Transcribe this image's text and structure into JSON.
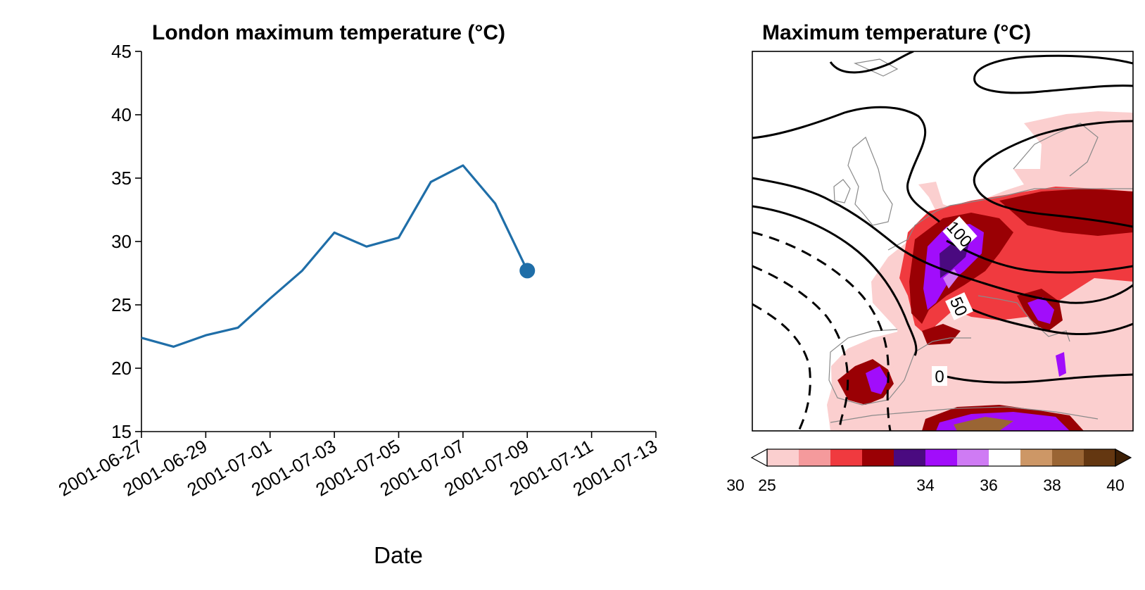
{
  "chart_data": [
    {
      "type": "line",
      "title": "London maximum temperature (°C)",
      "xlabel": "Date",
      "ylabel": "",
      "x": [
        "2001-06-27",
        "2001-06-28",
        "2001-06-29",
        "2001-06-30",
        "2001-07-01",
        "2001-07-02",
        "2001-07-03",
        "2001-07-04",
        "2001-07-05",
        "2001-07-06",
        "2001-07-07",
        "2001-07-08",
        "2001-07-09"
      ],
      "values": [
        22.4,
        21.7,
        22.6,
        23.2,
        25.5,
        27.7,
        30.7,
        29.6,
        30.3,
        34.7,
        36.0,
        33.0,
        27.7
      ],
      "highlight": {
        "x": "2001-07-09",
        "value": 27.7
      },
      "xticks": [
        "2001-06-27",
        "2001-06-29",
        "2001-07-01",
        "2001-07-03",
        "2001-07-05",
        "2001-07-07",
        "2001-07-09",
        "2001-07-11",
        "2001-07-13"
      ],
      "xlim": [
        "2001-06-27",
        "2001-07-13"
      ],
      "yticks": [
        "15",
        "20",
        "25",
        "30",
        "35",
        "40",
        "45"
      ],
      "ylim": [
        15,
        45
      ],
      "grid": false,
      "line_color": "#1f6ea8"
    },
    {
      "type": "heatmap",
      "title": "Maximum temperature (°C)",
      "colorbar": {
        "ticks": [
          "25",
          "30",
          "34",
          "36",
          "38",
          "40"
        ],
        "levels": [
          25,
          27,
          29,
          31,
          33,
          34,
          35,
          36,
          37,
          38,
          39,
          40
        ],
        "colors": [
          "#fbcfcf",
          "#f59a9c",
          "#f03a3f",
          "#9a0004",
          "#4a0a80",
          "#a10dfb",
          "#cf7bf4",
          "#ffffff",
          "#cd9766",
          "#9a6534",
          "#643711"
        ],
        "extend": "both"
      },
      "contour_labels": [
        "100",
        "50",
        "0"
      ]
    }
  ]
}
